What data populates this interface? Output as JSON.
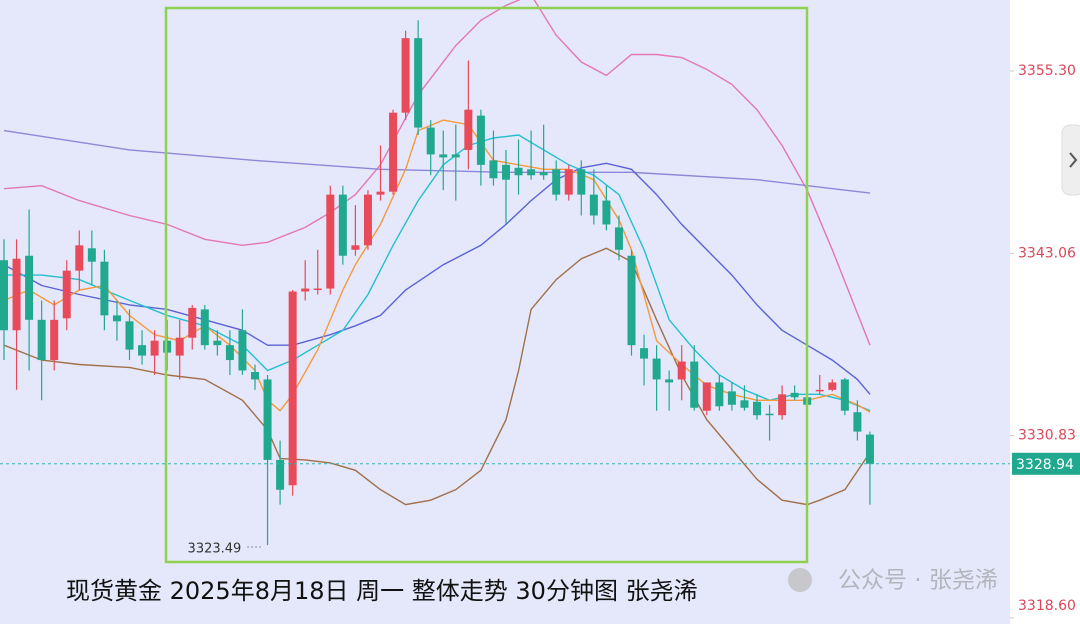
{
  "chart_data": {
    "type": "candlestick",
    "title": "现货黄金 2025年8月18日 周一 整体走势 30分钟图 张尧浠",
    "watermark": "公众号 · 张尧浠",
    "ylim": [
      3318.19,
      3360.06
    ],
    "yticks": [
      {
        "value": 3355.3,
        "label": "3355.30"
      },
      3343.06,
      3330.83,
      {
        "value": 3318.6,
        "label": "3318.60"
      }
    ],
    "up_color": "#e84a5a",
    "down_color": "#20a98f",
    "open": [
      3342.6,
      3337.9,
      3342.9,
      3338.6,
      3335.9,
      3338.7,
      3341.9,
      3343.4,
      3342.5,
      3338.9,
      3338.5,
      3336.9,
      3336.2,
      3337.2,
      3336.2,
      3337.4,
      3339.3,
      3337.2,
      3336.9,
      3337.9,
      3335.1,
      3334.6,
      3329.2,
      3327.5,
      3340.5,
      3340.6,
      3340.7,
      3347.0,
      3343.3,
      3343.6,
      3347.0,
      3347.2,
      3352.5,
      3357.5,
      3351.5,
      3349.7,
      3349.7,
      3350.0,
      3352.3,
      3349.3,
      3349.0,
      3348.8,
      3348.7,
      3348.5,
      3348.7,
      3347.0,
      3348.7,
      3347.0,
      3346.6,
      3344.8,
      3342.9,
      3336.7,
      3336.0,
      3334.6,
      3334.6,
      3335.8,
      3332.5,
      3334.4,
      3333.8,
      3333.2,
      3333.1,
      3332.3,
      3332.2,
      3333.7,
      3333.4,
      3333.8,
      3333.9,
      3334.6,
      3332.4,
      3330.9
    ],
    "high": [
      3344.0,
      3344.0,
      3346.0,
      3339.9,
      3339.9,
      3342.6,
      3344.6,
      3344.6,
      3343.3,
      3339.9,
      3339.3,
      3337.9,
      3337.9,
      3338.6,
      3338.6,
      3339.6,
      3339.6,
      3337.9,
      3337.9,
      3339.3,
      3335.6,
      3334.9,
      3330.5,
      3340.6,
      3342.6,
      3343.3,
      3347.6,
      3347.6,
      3346.3,
      3347.3,
      3350.3,
      3352.7,
      3358.0,
      3358.7,
      3352.0,
      3351.3,
      3351.7,
      3356.0,
      3352.7,
      3351.3,
      3350.0,
      3350.7,
      3351.3,
      3351.7,
      3349.3,
      3349.0,
      3349.3,
      3348.7,
      3347.6,
      3345.6,
      3343.3,
      3337.6,
      3336.9,
      3335.2,
      3336.9,
      3336.9,
      3334.2,
      3334.9,
      3334.4,
      3334.2,
      3333.6,
      3332.9,
      3334.2,
      3334.2,
      3334.2,
      3334.9,
      3334.6,
      3334.7,
      3333.2,
      3331.1
    ],
    "low": [
      3335.9,
      3333.9,
      3335.2,
      3333.2,
      3335.2,
      3337.9,
      3340.6,
      3340.9,
      3337.9,
      3337.2,
      3335.9,
      3335.6,
      3334.9,
      3335.2,
      3334.6,
      3336.6,
      3336.6,
      3336.2,
      3334.9,
      3334.9,
      3333.9,
      3323.49,
      3326.2,
      3326.8,
      3339.9,
      3340.3,
      3340.3,
      3342.3,
      3342.9,
      3343.3,
      3346.6,
      3347.0,
      3352.0,
      3351.0,
      3348.3,
      3347.3,
      3346.6,
      3348.7,
      3347.6,
      3347.6,
      3345.0,
      3347.0,
      3348.0,
      3348.0,
      3346.6,
      3346.6,
      3345.6,
      3345.0,
      3344.6,
      3342.6,
      3336.2,
      3334.2,
      3332.5,
      3332.5,
      3333.2,
      3332.5,
      3332.2,
      3332.5,
      3332.5,
      3332.5,
      3331.9,
      3330.5,
      3331.9,
      3333.2,
      3332.5,
      3333.6,
      3333.8,
      3332.2,
      3330.5,
      3326.2
    ],
    "close": [
      3337.9,
      3342.7,
      3338.6,
      3335.9,
      3338.6,
      3341.9,
      3343.6,
      3342.5,
      3338.9,
      3338.5,
      3336.6,
      3336.2,
      3337.2,
      3336.4,
      3337.4,
      3339.4,
      3336.9,
      3336.9,
      3335.9,
      3335.2,
      3334.6,
      3329.2,
      3327.2,
      3340.5,
      3340.7,
      3340.7,
      3347.0,
      3342.9,
      3343.6,
      3347.0,
      3347.2,
      3352.5,
      3357.5,
      3351.5,
      3349.7,
      3349.5,
      3349.5,
      3352.7,
      3349.0,
      3348.1,
      3348.0,
      3348.3,
      3348.3,
      3348.3,
      3347.0,
      3348.7,
      3347.0,
      3345.6,
      3345.0,
      3343.3,
      3336.9,
      3336.0,
      3334.6,
      3334.4,
      3335.8,
      3332.7,
      3334.4,
      3332.8,
      3332.9,
      3332.7,
      3332.2,
      3332.2,
      3333.6,
      3333.4,
      3332.9,
      3333.9,
      3334.4,
      3332.5,
      3331.1,
      3328.94
    ],
    "lines": [
      {
        "color": "#e377b5",
        "x": [
          0,
          3,
          6,
          10,
          13,
          16,
          19,
          21,
          24,
          26,
          28,
          30,
          33,
          36,
          38,
          40,
          42,
          44,
          46,
          48,
          50,
          52,
          54,
          56,
          58,
          60,
          62,
          64,
          66,
          69
        ],
        "values": [
          3347.4,
          3347.6,
          3346.6,
          3345.6,
          3345.0,
          3344.0,
          3343.6,
          3343.8,
          3344.8,
          3345.8,
          3347.0,
          3349.0,
          3353.7,
          3357.0,
          3358.7,
          3359.7,
          3360.4,
          3357.7,
          3355.9,
          3355.0,
          3356.4,
          3356.4,
          3356.2,
          3355.4,
          3354.4,
          3352.7,
          3350.3,
          3347.3,
          3343.3,
          3336.9
        ]
      },
      {
        "color": "#a0704a",
        "x": [
          0,
          3,
          6,
          10,
          13,
          16,
          19,
          21,
          22,
          24,
          26,
          28,
          30,
          32,
          34,
          36,
          38,
          40,
          41,
          42,
          44,
          46,
          48,
          50,
          52,
          54,
          56,
          58,
          60,
          62,
          64,
          65,
          67,
          69
        ],
        "values": [
          3336.9,
          3335.9,
          3335.6,
          3335.4,
          3334.9,
          3334.6,
          3333.2,
          3331.2,
          3329.3,
          3329.2,
          3329.0,
          3328.5,
          3327.2,
          3326.2,
          3326.5,
          3327.2,
          3328.5,
          3331.9,
          3335.2,
          3339.3,
          3341.3,
          3342.7,
          3343.4,
          3342.5,
          3338.6,
          3334.9,
          3331.9,
          3329.9,
          3327.9,
          3326.5,
          3326.2,
          3326.5,
          3327.2,
          3329.7
        ]
      },
      {
        "color": "#8e86d8",
        "x": [
          0,
          10,
          20,
          30,
          40,
          50,
          60,
          69
        ],
        "values": [
          3351.3,
          3350.0,
          3349.3,
          3348.7,
          3348.5,
          3348.5,
          3348.0,
          3347.1
        ]
      },
      {
        "color": "#5b62d6",
        "x": [
          0,
          3,
          6,
          10,
          13,
          16,
          19,
          21,
          23,
          26,
          28,
          30,
          32,
          35,
          38,
          40,
          42,
          44,
          46,
          48,
          50,
          52,
          54,
          56,
          58,
          60,
          62,
          64,
          66,
          68,
          69
        ],
        "values": [
          3342.3,
          3340.9,
          3340.3,
          3339.6,
          3339.3,
          3338.6,
          3337.9,
          3336.9,
          3336.9,
          3337.6,
          3338.2,
          3338.9,
          3340.6,
          3342.3,
          3343.6,
          3345.0,
          3346.6,
          3348.0,
          3348.8,
          3349.1,
          3348.7,
          3347.0,
          3345.0,
          3343.3,
          3341.6,
          3339.6,
          3337.9,
          3336.9,
          3335.9,
          3334.6,
          3333.6
        ]
      },
      {
        "color": "#22c0d0",
        "x": [
          0,
          3,
          6,
          8,
          10,
          13,
          16,
          19,
          21,
          23,
          25,
          27,
          29,
          31,
          33,
          35,
          37,
          39,
          41,
          43,
          45,
          47,
          49,
          51,
          53,
          55,
          57,
          59,
          61,
          63,
          65,
          67,
          69
        ],
        "values": [
          3341.6,
          3341.6,
          3341.3,
          3340.6,
          3339.9,
          3338.9,
          3338.2,
          3336.9,
          3335.2,
          3335.9,
          3336.9,
          3337.9,
          3340.3,
          3343.6,
          3346.6,
          3349.0,
          3350.3,
          3350.8,
          3351.0,
          3350.0,
          3349.0,
          3348.3,
          3347.0,
          3343.3,
          3338.6,
          3336.6,
          3334.9,
          3333.9,
          3333.2,
          3333.6,
          3333.6,
          3333.2,
          3332.5
        ]
      },
      {
        "color": "#f59a3a",
        "x": [
          0,
          2,
          4,
          6,
          8,
          10,
          12,
          14,
          16,
          18,
          20,
          21,
          22,
          23,
          25,
          27,
          28,
          30,
          32,
          33,
          35,
          37,
          39,
          41,
          43,
          45,
          47,
          49,
          50,
          52,
          54,
          56,
          58,
          60,
          62,
          64,
          66,
          68,
          69
        ],
        "values": [
          3339.9,
          3340.6,
          3339.6,
          3340.6,
          3340.9,
          3338.9,
          3337.6,
          3337.2,
          3338.2,
          3336.9,
          3335.2,
          3333.2,
          3332.5,
          3333.6,
          3336.6,
          3340.6,
          3342.3,
          3345.0,
          3348.7,
          3351.3,
          3352.0,
          3351.7,
          3349.3,
          3349.0,
          3348.7,
          3348.7,
          3348.0,
          3345.3,
          3343.3,
          3337.2,
          3335.6,
          3334.2,
          3333.6,
          3333.2,
          3333.2,
          3333.2,
          3333.6,
          3332.9,
          3332.4
        ]
      }
    ]
  }
}
